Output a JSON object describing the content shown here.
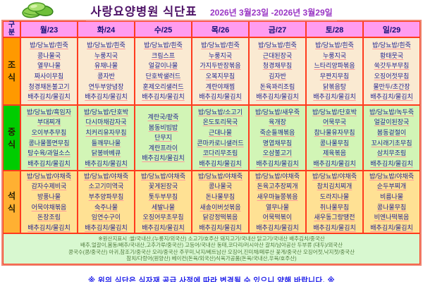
{
  "header": {
    "title": "사랑요양병원  식단표",
    "date_range": "2026년 3월23일 -2026년 3월29일"
  },
  "table": {
    "corner_label": "구분",
    "meal_labels": {
      "breakfast": "조식",
      "lunch": "중식",
      "dinner": "석식"
    },
    "days": [
      {
        "label": "월/23",
        "breakfast": [
          "밥/당뇨밥/흰죽",
          "콩나물국",
          "열무나물",
          "짜사이무침",
          "청경채돈불고기",
          "배추김치/물김치"
        ],
        "lunch": [
          "밥/당뇨밥/흑임자",
          "부대찌개",
          "오이부추무침",
          "콩나물쫄면무침",
          "탕수육/과일소스",
          "배추김치/물김치"
        ],
        "dinner": [
          "밥/당뇨밥/야채죽",
          "감자수제비국",
          "방풍나물",
          "어묵야채볶음",
          "돈장조림",
          "배추김치/물김치"
        ]
      },
      {
        "label": "화/24",
        "breakfast": [
          "밥/당뇨밥/흰죽",
          "누룽지국",
          "유채나물",
          "콩자반",
          "연두부양념장",
          "배추김치/물김치"
        ],
        "lunch": [
          "밥/당뇨밥/단호박",
          "다시마채감자국",
          "치커리유자무침",
          "들깨무나물",
          "닭봉바베큐",
          "배추김치/물김치"
        ],
        "dinner": [
          "밥/당뇨밥/야채죽",
          "소고기미역국",
          "부추양파무침",
          "숙주나물",
          "임연수구이",
          "배추김치/물김치"
        ]
      },
      {
        "label": "수/25",
        "breakfast": [
          "밥/당뇨밥/흰죽",
          "크림스프",
          "얼갈이나물",
          "단호박샐러드",
          "훈제오리샐러드",
          "배추김치/물김치"
        ],
        "lunch": [
          "계란국/팥죽",
          "봄동비빔밥",
          "단무지",
          "계란프라이",
          "배추김치/물김치"
        ],
        "dinner": [
          "밥/당뇨밥/야채죽",
          "꽃게된장국",
          "톳두부무침",
          "세발나물",
          "오징어무초무침",
          "배추김치/물김치"
        ]
      },
      {
        "label": "목/26",
        "breakfast": [
          "밥/당뇨밥/흰죽",
          "누룽지국",
          "가지두반장볶음",
          "오복지무침",
          "계란야채찜",
          "배추김치/물김치"
        ],
        "lunch": [
          "밥/당뇨밥/소고기",
          "온도토리묵국",
          "근대나물",
          "콘마카로니샐러드",
          "코다리무조림",
          "배추김치/물김치"
        ],
        "dinner": [
          "밥/당뇨밥/야채죽",
          "콩나물국",
          "돈나물무침",
          "새송이버섯볶음",
          "닭강정떡볶음",
          "배추김치/물김치"
        ]
      },
      {
        "label": "금/27",
        "breakfast": [
          "밥/당뇨밥/흰죽",
          "근대된장국",
          "청경채무침",
          "김자반",
          "돈육꽈리조림",
          "배추김치/물김치"
        ],
        "lunch": [
          "밥/당뇨밥/새우죽",
          "육개장",
          "죽순들깨볶음",
          "명엽채무침",
          "오삼불고기",
          "배추김치/물김치"
        ],
        "dinner": [
          "밥/당뇨밥/야채죽",
          "돈육고추장찌개",
          "새우마늘쫑볶음",
          "열무나물",
          "어묵떡볶이",
          "배추김치/물김치"
        ]
      },
      {
        "label": "토/28",
        "breakfast": [
          "밥/당뇨밥/흰죽",
          "누룽지국",
          "느타리양파볶음",
          "무짠지무침",
          "닭볶음탕",
          "배추김치/물김치"
        ],
        "lunch": [
          "밥/당뇨밥/단호박",
          "어묵무국",
          "참나물유자무침",
          "콩나물무침",
          "제육볶음",
          "배추김치/물김치"
        ],
        "dinner": [
          "밥/당뇨밥/야채죽",
          "참치김치찌개",
          "도라지나물",
          "취나물무침",
          "새우동그랑땡전",
          "배추김치/물김치"
        ]
      },
      {
        "label": "일/29",
        "breakfast": [
          "밥/당뇨밥/흰죽",
          "황태뭇국",
          "쑥갓두부무침",
          "오징어젓무침",
          "물만두/초간장",
          "배추김치/물김치"
        ],
        "lunch": [
          "밥/당뇨밥/녹두죽",
          "얼갈이된장국",
          "봄동겉절이",
          "꼬시래기초무침",
          "삼치무조림",
          "배추김치/물김치"
        ],
        "dinner": [
          "밥/당뇨밥/야채죽",
          "순두부찌개",
          "비름나물",
          "콩나물무침",
          "비엔나떡볶음",
          "배추김치/물김치"
        ]
      }
    ]
  },
  "footer": {
    "origin_lines": [
      "※원산지표시 :쌀/국내산,(누룽지/외국산) 소고기/호주산  돼지고기/국내산 닭고기/국내산 배추김치/중국산",
      "배추,얼갈이,봄동/배추/국내산,고추가루/중국산) 고등어/국내산  동태,코다리/러시아산  갈치/남아공산  두부류 (대두)/외국산",
      "콩국수(콩/중국산)  아귀,참조기/중국산  오리/중국산 주꾸미,낙지/베트남산 오징어,진미채/페루산  꽃게/중국산  오징어젓,낙지젓/중국산",
      "참치/다랑어(원양산)  베이컨(돈육/외국산)식육가공품(돈육/국내산,우육/호주산)"
    ]
  },
  "note": "※ 위의 식단은 식자재 공급 사정에 따라 변경될 수 있으니 양해 바랍니다. ※",
  "colors": {
    "day_header_bg": "#ff9cf0",
    "breakfast_label_bg": "#ff9900",
    "lunch_label_bg": "#00cc00",
    "dinner_label_bg": "#ffb032",
    "breakfast_row_bg": "#faead2",
    "lunch_row_bg": "#d2f5b6",
    "dinner_row_bg": "#ffe194",
    "footer_bg": "#d8f8d0",
    "grid_border": "#ff3b1e",
    "menu_text": "#22238f",
    "note_text": "#2020ea"
  }
}
